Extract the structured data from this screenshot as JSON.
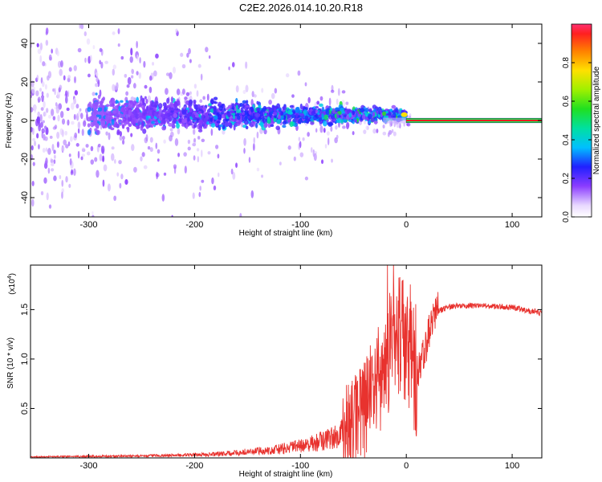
{
  "title": "C2E2.2026.014.10.20.R18",
  "colors": {
    "snr_line": "#e8322e",
    "stripe_outline": "#1a7a2a",
    "stripe_core": "#e81e1e"
  },
  "chart_data": [
    {
      "type": "heatmap",
      "xlabel": "Height of straight line (km)",
      "ylabel": "Frequency (Hz)",
      "xlim": [
        -355,
        128
      ],
      "ylim": [
        -50,
        50
      ],
      "x_ticks": [
        -300,
        -200,
        -100,
        0,
        100
      ],
      "y_ticks": [
        40,
        20,
        0,
        -20,
        -40
      ],
      "colorbar": {
        "label": "Normalized spectral amplitude",
        "range": [
          0,
          1
        ],
        "ticks": [
          "0.0",
          "0.2",
          "0.4",
          "0.6",
          "0.8"
        ]
      },
      "stripe": {
        "x_start": 0,
        "x_end": 128,
        "frequency": 0,
        "amplitude": 1.0
      }
    },
    {
      "type": "line",
      "xlabel": "Height of straight line (km)",
      "ylabel": "SNR (10 * v/v)",
      "exponent_label": "(x10",
      "exponent_power": "4",
      "exponent_close": ")",
      "xlim": [
        -355,
        128
      ],
      "ylim": [
        0,
        1.95
      ],
      "x_ticks": [
        -300,
        -200,
        -100,
        0,
        100
      ],
      "y_ticks": [
        "0.5",
        "1.0",
        "1.5"
      ],
      "x": [
        -355,
        -300,
        -250,
        -200,
        -175,
        -150,
        -125,
        -100,
        -90,
        -80,
        -70,
        -60,
        -50,
        -40,
        -30,
        -25,
        -20,
        -15,
        -12,
        -10,
        -5,
        0,
        5,
        10,
        15,
        20,
        25,
        30,
        40,
        50,
        60,
        70,
        80,
        90,
        100,
        110,
        120,
        128
      ],
      "y": [
        0.01,
        0.015,
        0.02,
        0.03,
        0.04,
        0.06,
        0.08,
        0.12,
        0.14,
        0.17,
        0.2,
        0.25,
        0.35,
        0.5,
        0.7,
        0.8,
        0.95,
        1.1,
        1.2,
        1.25,
        1.25,
        1.2,
        1.05,
        0.85,
        1.0,
        1.2,
        1.38,
        1.48,
        1.53,
        1.54,
        1.54,
        1.54,
        1.53,
        1.53,
        1.52,
        1.5,
        1.48,
        1.47
      ]
    }
  ]
}
